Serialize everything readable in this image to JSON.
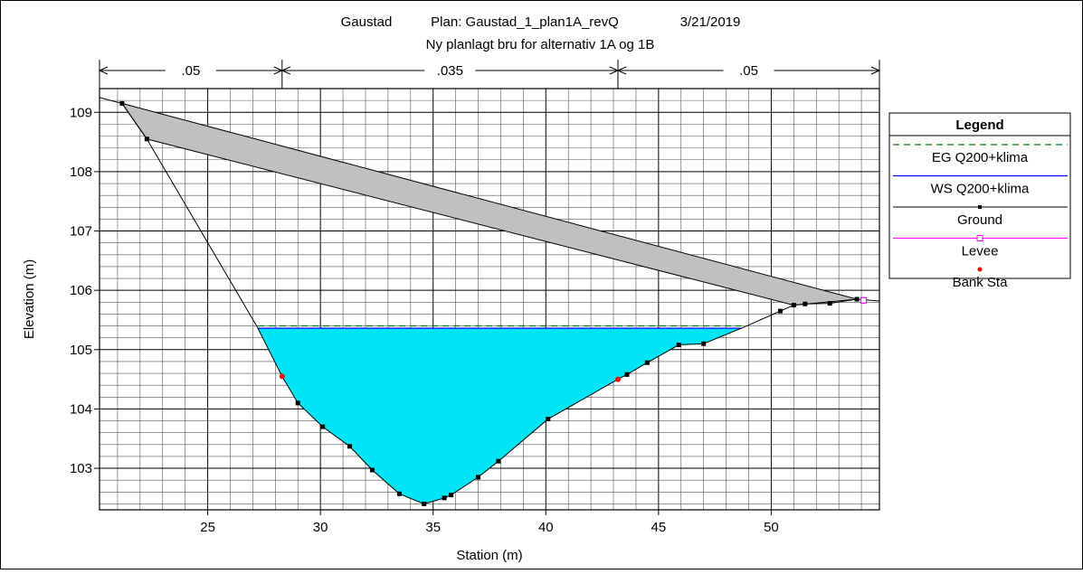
{
  "chart_data": {
    "type": "line",
    "title_line1_parts": [
      "Gaustad",
      "Plan: Gaustad_1_plan1A_revQ",
      "3/21/2019"
    ],
    "title_line2": "Ny planlagt bru for alternativ 1A og 1B",
    "xlabel": "Station (m)",
    "ylabel": "Elevation (m)",
    "xlim": [
      20.2,
      54.8
    ],
    "ylim": [
      102.3,
      109.4
    ],
    "xticks": [
      25,
      30,
      35,
      40,
      45,
      50
    ],
    "yticks": [
      103,
      104,
      105,
      106,
      107,
      108,
      109
    ],
    "grid": true,
    "mannings": {
      "breaks": [
        20.2,
        28.3,
        43.2,
        54.8
      ],
      "values": [
        ".05",
        ".035",
        ".05"
      ]
    },
    "ground": [
      [
        20.2,
        109.25
      ],
      [
        21.2,
        109.15
      ],
      [
        22.3,
        108.55
      ],
      [
        27.2,
        105.38
      ],
      [
        28.3,
        104.55
      ],
      [
        29.0,
        104.1
      ],
      [
        30.1,
        103.7
      ],
      [
        31.3,
        103.37
      ],
      [
        32.3,
        102.97
      ],
      [
        33.5,
        102.57
      ],
      [
        34.6,
        102.4
      ],
      [
        35.5,
        102.5
      ],
      [
        35.8,
        102.55
      ],
      [
        37.0,
        102.85
      ],
      [
        37.9,
        103.12
      ],
      [
        40.1,
        103.83
      ],
      [
        43.2,
        104.5
      ],
      [
        43.6,
        104.58
      ],
      [
        44.5,
        104.78
      ],
      [
        45.9,
        105.08
      ],
      [
        47.0,
        105.1
      ],
      [
        48.8,
        105.38
      ],
      [
        50.4,
        105.65
      ],
      [
        51.0,
        105.75
      ],
      [
        51.5,
        105.77
      ],
      [
        52.6,
        105.78
      ],
      [
        53.8,
        105.85
      ],
      [
        54.8,
        105.82
      ]
    ],
    "ground_points_x": [
      21.2,
      22.3,
      29.0,
      30.1,
      31.3,
      32.3,
      33.5,
      34.6,
      35.5,
      35.8,
      37.0,
      37.9,
      40.1,
      43.6,
      44.5,
      45.9,
      47.0,
      50.4,
      51.0,
      51.5,
      52.6,
      53.8
    ],
    "bridge_deck_low": [
      [
        22.3,
        108.55
      ],
      [
        51.0,
        105.75
      ]
    ],
    "bridge_deck_high": [
      [
        21.2,
        109.15
      ],
      [
        53.8,
        105.85
      ]
    ],
    "ws_elevation": 105.36,
    "eg_elevation": 105.4,
    "levee": [
      54.1,
      105.83
    ],
    "bank_stations": [
      [
        28.3,
        104.55
      ],
      [
        43.2,
        104.5
      ]
    ],
    "colors": {
      "water": "#00e5f5",
      "bridge": "#c0c0c0",
      "eg": "#008000",
      "ws": "#0000ff",
      "ground": "#000000",
      "levee": "#ff00ff",
      "bank": "#ff0000"
    },
    "legend": {
      "title": "Legend",
      "entries": [
        {
          "name": "EG Q200+klima",
          "style": "eg"
        },
        {
          "name": "WS Q200+klima",
          "style": "ws"
        },
        {
          "name": "Ground",
          "style": "ground"
        },
        {
          "name": "Levee",
          "style": "levee"
        },
        {
          "name": "Bank Sta",
          "style": "bank"
        }
      ]
    }
  }
}
